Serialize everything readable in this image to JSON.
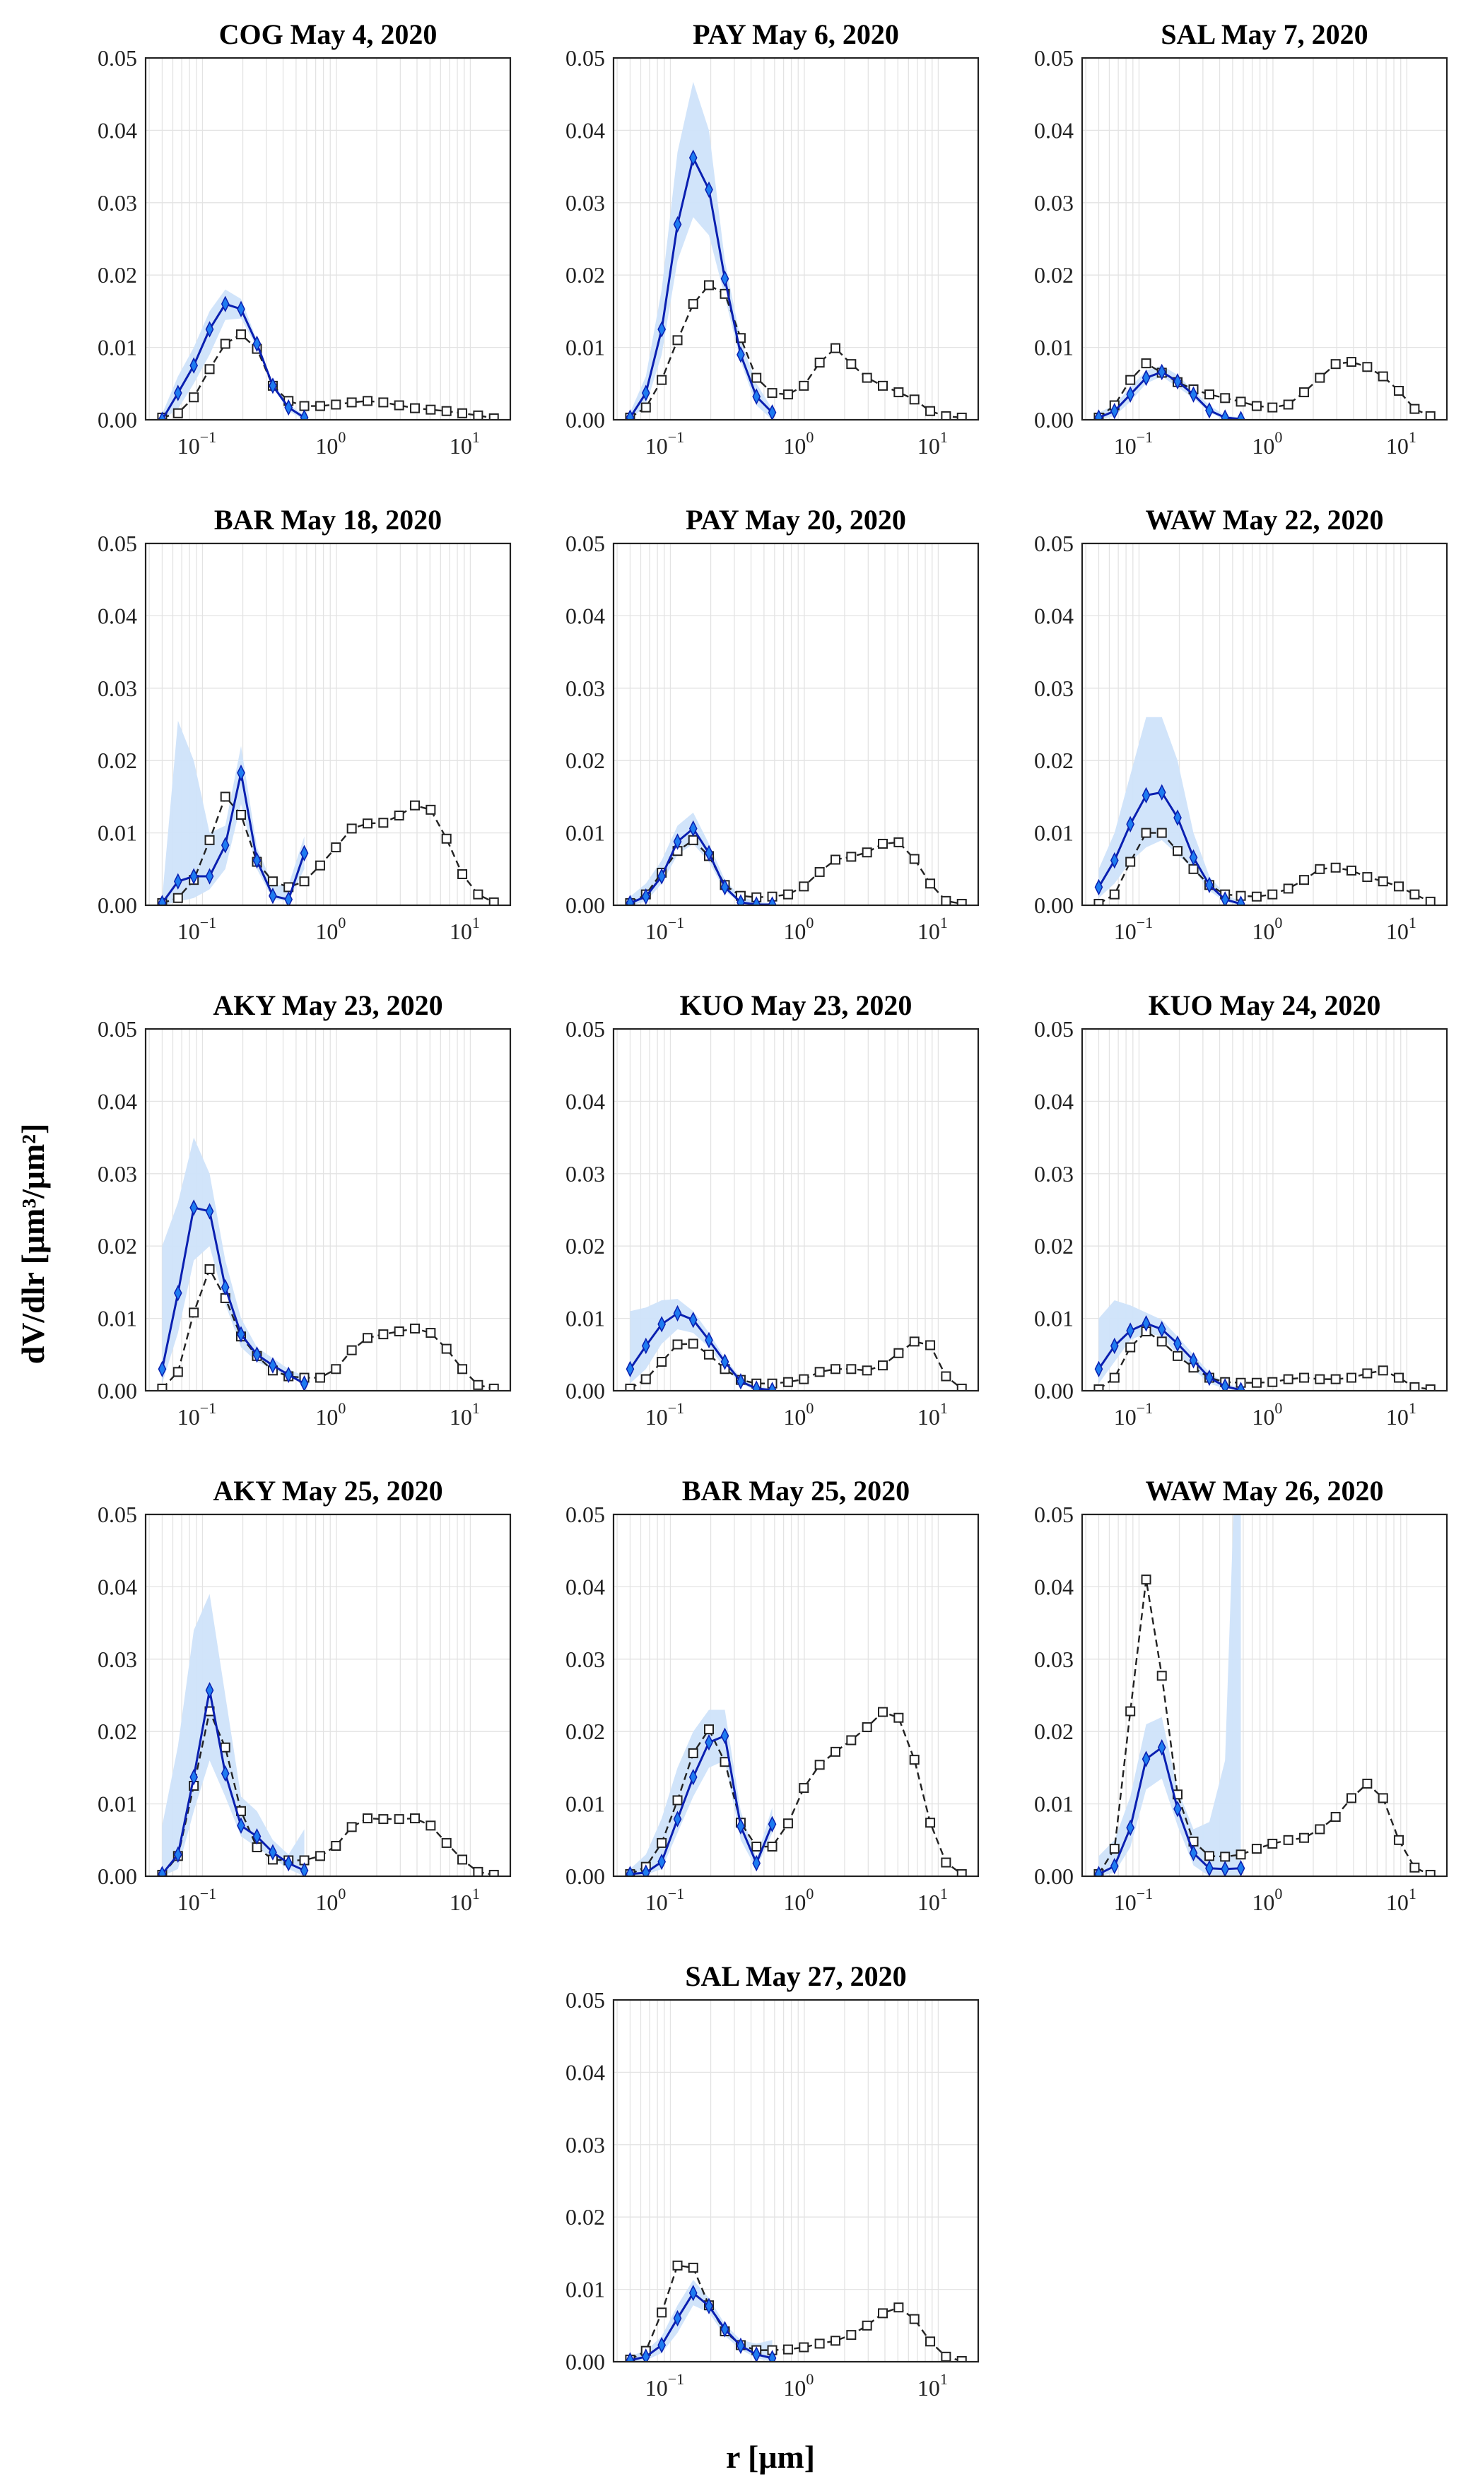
{
  "figure": {
    "xlabel": "r [μm]",
    "ylabel": "dV/dlr [μm³/μm²]"
  },
  "axes": {
    "xscale": "log",
    "xlim": [
      0.0376,
      19.9
    ],
    "ylim": [
      0,
      0.05
    ],
    "yticks": [
      0,
      0.01,
      0.02,
      0.03,
      0.04,
      0.05
    ],
    "ytick_labels": [
      "0.00",
      "0.01",
      "0.02",
      "0.03",
      "0.04",
      "0.05"
    ],
    "xticks": [
      0.1,
      1,
      10
    ],
    "xtick_base": [
      "10",
      "10",
      "10"
    ],
    "xtick_exp": [
      "−1",
      "0",
      "1"
    ],
    "grid": true
  },
  "colors": {
    "black_series": "#222222",
    "blue_line": "#0a1fb0",
    "blue_marker": "#1e7bf0",
    "band": "#cfe3fa",
    "grid": "#e3e3e3"
  },
  "chart_data": [
    {
      "type": "line",
      "title": "COG May 4, 2020",
      "black_dashed": [
        0.0003,
        0.0009,
        0.0031,
        0.007,
        0.0105,
        0.0118,
        0.0098,
        0.0047,
        0.0026,
        0.0019,
        0.0019,
        0.0021,
        0.0024,
        0.0026,
        0.0024,
        0.002,
        0.0016,
        0.0014,
        0.0012,
        0.0009,
        0.0006,
        0.0002
      ],
      "blue_solid": [
        0.0,
        0.0037,
        0.0075,
        0.0125,
        0.016,
        0.0153,
        0.0105,
        0.0047,
        0.0017,
        0.0003
      ],
      "band_lower": [
        0,
        0.0015,
        0.005,
        0.009,
        0.0138,
        0.014,
        0.01,
        0.0045,
        0.0012,
        0
      ],
      "band_upper": [
        0.0008,
        0.006,
        0.01,
        0.015,
        0.018,
        0.0167,
        0.011,
        0.005,
        0.0022,
        0.0006
      ]
    },
    {
      "type": "line",
      "title": "PAY May 6, 2020",
      "black_dashed": [
        0.0003,
        0.0017,
        0.0055,
        0.011,
        0.016,
        0.0186,
        0.0174,
        0.0113,
        0.0058,
        0.0037,
        0.0035,
        0.0047,
        0.0079,
        0.0099,
        0.0077,
        0.0058,
        0.0047,
        0.0038,
        0.0028,
        0.0012,
        0.0005,
        0.0003
      ],
      "blue_solid": [
        0.0003,
        0.0037,
        0.0125,
        0.027,
        0.0362,
        0.0318,
        0.0195,
        0.009,
        0.0032,
        0.001
      ],
      "band_lower": [
        0,
        0.002,
        0.009,
        0.022,
        0.028,
        0.0255,
        0.017,
        0.008,
        0.002,
        0
      ],
      "band_upper": [
        0.001,
        0.006,
        0.018,
        0.037,
        0.0467,
        0.04,
        0.022,
        0.011,
        0.005,
        0.0015
      ]
    },
    {
      "type": "line",
      "title": "SAL May 7, 2020",
      "black_dashed": [
        0.0003,
        0.002,
        0.0055,
        0.0078,
        0.0065,
        0.0052,
        0.0042,
        0.0035,
        0.003,
        0.0025,
        0.0019,
        0.0017,
        0.0021,
        0.0038,
        0.0058,
        0.0077,
        0.008,
        0.0073,
        0.006,
        0.004,
        0.0015,
        0.0005
      ],
      "blue_solid": [
        0.0003,
        0.0012,
        0.0035,
        0.0058,
        0.0066,
        0.0053,
        0.0035,
        0.0013,
        0.0003,
        0.0001
      ],
      "band_lower": [
        0,
        0.0005,
        0.0025,
        0.005,
        0.006,
        0.0045,
        0.003,
        0.001,
        0,
        0
      ],
      "band_upper": [
        0.001,
        0.002,
        0.0045,
        0.0068,
        0.0075,
        0.0062,
        0.004,
        0.002,
        0.0006,
        0.0003
      ]
    },
    {
      "type": "line",
      "title": "BAR May 18, 2020",
      "black_dashed": [
        0.0003,
        0.001,
        0.0035,
        0.009,
        0.015,
        0.0125,
        0.006,
        0.0033,
        0.0025,
        0.0033,
        0.0055,
        0.008,
        0.0106,
        0.0113,
        0.0114,
        0.0124,
        0.0138,
        0.0132,
        0.0092,
        0.0043,
        0.0015,
        0.0004
      ],
      "blue_solid": [
        0.0003,
        0.0033,
        0.004,
        0.004,
        0.0083,
        0.0183,
        0.0062,
        0.0013,
        0.0008,
        0.0072
      ],
      "band_lower": [
        0,
        0.0005,
        0.001,
        0.0022,
        0.005,
        0.014,
        0.005,
        0.0008,
        0.0006,
        0.005
      ],
      "band_upper": [
        0.001,
        0.0255,
        0.02,
        0.01,
        0.011,
        0.022,
        0.008,
        0.0028,
        0.0028,
        0.0095
      ]
    },
    {
      "type": "line",
      "title": "PAY May 20, 2020",
      "black_dashed": [
        0.0003,
        0.0015,
        0.0045,
        0.0075,
        0.009,
        0.0068,
        0.0028,
        0.0013,
        0.0011,
        0.0012,
        0.0015,
        0.0026,
        0.0046,
        0.0063,
        0.0067,
        0.0073,
        0.0085,
        0.0087,
        0.0064,
        0.003,
        0.0006,
        0.0002
      ],
      "blue_solid": [
        0.0003,
        0.0012,
        0.004,
        0.0088,
        0.0106,
        0.0072,
        0.0025,
        0.0004,
        0.0001,
        0.0001
      ],
      "band_lower": [
        0,
        0.0005,
        0.003,
        0.007,
        0.0085,
        0.006,
        0.002,
        0.0002,
        0,
        0
      ],
      "band_upper": [
        0.0012,
        0.003,
        0.0062,
        0.011,
        0.0128,
        0.0085,
        0.0035,
        0.0012,
        0.0005,
        0.0003
      ]
    },
    {
      "type": "line",
      "title": "WAW May 22, 2020",
      "black_dashed": [
        0.0002,
        0.0015,
        0.006,
        0.01,
        0.01,
        0.0075,
        0.005,
        0.0028,
        0.0015,
        0.0013,
        0.0012,
        0.0015,
        0.0023,
        0.0035,
        0.005,
        0.0052,
        0.0048,
        0.0039,
        0.0033,
        0.0026,
        0.0015,
        0.0005
      ],
      "blue_solid": [
        0.0025,
        0.0062,
        0.0112,
        0.0152,
        0.0156,
        0.0121,
        0.0066,
        0.0028,
        0.0008,
        0.0002
      ],
      "band_lower": [
        0.001,
        0.003,
        0.006,
        0.008,
        0.009,
        0.007,
        0.005,
        0.002,
        0.0005,
        0
      ],
      "band_upper": [
        0.005,
        0.01,
        0.018,
        0.026,
        0.026,
        0.02,
        0.01,
        0.004,
        0.0015,
        0.0005
      ]
    },
    {
      "type": "line",
      "title": "AKY May 23, 2020",
      "black_dashed": [
        0.0003,
        0.0026,
        0.0108,
        0.0168,
        0.0128,
        0.0075,
        0.0048,
        0.0028,
        0.002,
        0.0018,
        0.0018,
        0.003,
        0.0056,
        0.0073,
        0.0078,
        0.0082,
        0.0086,
        0.008,
        0.0058,
        0.003,
        0.0008,
        0.0003
      ],
      "blue_solid": [
        0.003,
        0.0135,
        0.0253,
        0.0248,
        0.0143,
        0.0078,
        0.005,
        0.0035,
        0.0022,
        0.001
      ],
      "band_lower": [
        0.001,
        0.008,
        0.018,
        0.02,
        0.012,
        0.006,
        0.004,
        0.003,
        0.002,
        0.0008
      ],
      "band_upper": [
        0.02,
        0.026,
        0.035,
        0.03,
        0.018,
        0.01,
        0.006,
        0.0045,
        0.003,
        0.002
      ]
    },
    {
      "type": "line",
      "title": "KUO May 23, 2020",
      "black_dashed": [
        0.0003,
        0.0016,
        0.004,
        0.0064,
        0.0065,
        0.005,
        0.003,
        0.0015,
        0.001,
        0.001,
        0.0012,
        0.0016,
        0.0026,
        0.003,
        0.003,
        0.0028,
        0.0035,
        0.0052,
        0.0068,
        0.0063,
        0.002,
        0.0003
      ],
      "blue_solid": [
        0.003,
        0.0062,
        0.0092,
        0.0107,
        0.0098,
        0.007,
        0.004,
        0.0013,
        0.0003,
        0.0001
      ],
      "band_lower": [
        0.001,
        0.003,
        0.0065,
        0.0085,
        0.008,
        0.006,
        0.0032,
        0.001,
        0,
        0
      ],
      "band_upper": [
        0.011,
        0.0115,
        0.0125,
        0.0127,
        0.011,
        0.008,
        0.0045,
        0.0018,
        0.0006,
        0.0003
      ]
    },
    {
      "type": "line",
      "title": "KUO May 24, 2020",
      "black_dashed": [
        0.0002,
        0.0018,
        0.006,
        0.0082,
        0.0068,
        0.0048,
        0.0032,
        0.0018,
        0.0012,
        0.0011,
        0.0011,
        0.0012,
        0.0016,
        0.0018,
        0.0016,
        0.0016,
        0.0018,
        0.0024,
        0.0028,
        0.0018,
        0.0005,
        0.0002
      ],
      "blue_solid": [
        0.003,
        0.0062,
        0.0083,
        0.0093,
        0.0085,
        0.0065,
        0.0042,
        0.0018,
        0.0006,
        0.0001
      ],
      "band_lower": [
        0.001,
        0.004,
        0.007,
        0.008,
        0.0075,
        0.005,
        0.003,
        0.001,
        0.0003,
        0
      ],
      "band_upper": [
        0.01,
        0.0125,
        0.0118,
        0.0108,
        0.0098,
        0.0075,
        0.005,
        0.0025,
        0.001,
        0.0004
      ]
    },
    {
      "type": "line",
      "title": "AKY May 25, 2020",
      "black_dashed": [
        0.0002,
        0.0028,
        0.0125,
        0.0228,
        0.0178,
        0.009,
        0.004,
        0.0023,
        0.0022,
        0.0022,
        0.0028,
        0.0042,
        0.0068,
        0.008,
        0.0079,
        0.0079,
        0.008,
        0.007,
        0.0046,
        0.0023,
        0.0006,
        0.0002
      ],
      "blue_solid": [
        0.0003,
        0.003,
        0.0137,
        0.0257,
        0.0142,
        0.007,
        0.0055,
        0.0033,
        0.0018,
        0.0008
      ],
      "band_lower": [
        0,
        0.001,
        0.009,
        0.016,
        0.011,
        0.0055,
        0.004,
        0.0025,
        0.001,
        0
      ],
      "band_upper": [
        0.007,
        0.018,
        0.034,
        0.039,
        0.025,
        0.011,
        0.009,
        0.005,
        0.003,
        0.0065
      ]
    },
    {
      "type": "line",
      "title": "BAR May 25, 2020",
      "black_dashed": [
        0.0003,
        0.0013,
        0.0046,
        0.0105,
        0.017,
        0.0203,
        0.0158,
        0.0074,
        0.0041,
        0.0041,
        0.0073,
        0.0122,
        0.0154,
        0.0172,
        0.0188,
        0.0206,
        0.0227,
        0.0219,
        0.0161,
        0.0074,
        0.0019,
        0.0003
      ],
      "blue_solid": [
        0.0003,
        0.0005,
        0.002,
        0.0079,
        0.0137,
        0.0185,
        0.0194,
        0.0069,
        0.0018,
        0.0072
      ],
      "band_lower": [
        0,
        0.0002,
        0.001,
        0.006,
        0.011,
        0.015,
        0.016,
        0.005,
        0.001,
        0.006
      ],
      "band_upper": [
        0.001,
        0.003,
        0.008,
        0.015,
        0.02,
        0.023,
        0.023,
        0.009,
        0.0025,
        0.0095
      ]
    },
    {
      "type": "line",
      "title": "WAW May 26, 2020",
      "black_dashed": [
        0.0003,
        0.0038,
        0.0228,
        0.041,
        0.0277,
        0.0113,
        0.0048,
        0.0028,
        0.0027,
        0.003,
        0.0038,
        0.0045,
        0.005,
        0.0053,
        0.0065,
        0.0082,
        0.0108,
        0.0128,
        0.0108,
        0.005,
        0.0012,
        0.0002
      ],
      "blue_solid": [
        0.0003,
        0.0014,
        0.0067,
        0.0162,
        0.0178,
        0.0093,
        0.0032,
        0.0011,
        0.001,
        0.0011
      ],
      "band_lower": [
        0,
        0.0005,
        0.004,
        0.012,
        0.0135,
        0.007,
        0.0015,
        0,
        0,
        0
      ],
      "band_upper": [
        0.0028,
        0.005,
        0.011,
        0.021,
        0.022,
        0.012,
        0.0065,
        0.0075,
        0.016,
        0.08
      ]
    },
    {
      "type": "line",
      "title": "SAL May 27, 2020",
      "black_dashed": [
        0.0003,
        0.0015,
        0.0068,
        0.0133,
        0.013,
        0.0078,
        0.0042,
        0.0023,
        0.0016,
        0.0016,
        0.0017,
        0.002,
        0.0025,
        0.0029,
        0.0037,
        0.005,
        0.0067,
        0.0075,
        0.0059,
        0.0028,
        0.0007,
        0.0001
      ],
      "blue_solid": [
        0.0002,
        0.0007,
        0.0023,
        0.006,
        0.0095,
        0.0077,
        0.0045,
        0.0022,
        0.001,
        0.0005
      ],
      "band_lower": [
        0,
        0.0002,
        0.0012,
        0.004,
        0.0078,
        0.0068,
        0.0036,
        0.0017,
        0.0005,
        0
      ],
      "band_upper": [
        0.0008,
        0.0015,
        0.0035,
        0.0078,
        0.0113,
        0.0088,
        0.0052,
        0.003,
        0.0025,
        0.003
      ]
    }
  ],
  "r_bins_um": [
    0.05,
    0.0656,
    0.0861,
    0.113,
    0.148,
    0.194,
    0.255,
    0.335,
    0.439,
    0.576,
    0.756,
    0.992,
    1.302,
    1.708,
    2.241,
    2.94,
    3.857,
    5.061,
    6.641,
    8.713,
    11.43,
    15.0
  ]
}
